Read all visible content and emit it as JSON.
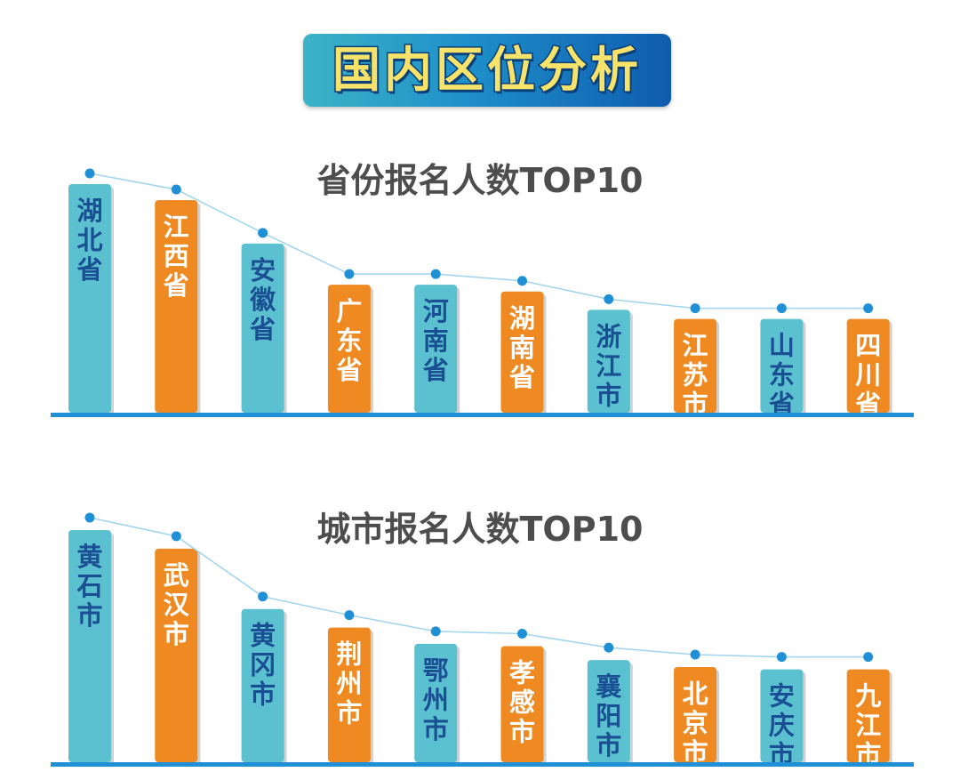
{
  "banner": {
    "title": "国内区位分析"
  },
  "colors": {
    "teal": "#5bc0cf",
    "orange": "#ee8a21",
    "teal_text": "#1a4f93",
    "orange_text": "#ffffff",
    "dot": "#1f8fd6",
    "line": "#9fd4ee",
    "baseline": "#1f8fd6"
  },
  "chart_data": [
    {
      "type": "bar",
      "title": "省份报名人数TOP10",
      "categories": [
        "湖北省",
        "江西省",
        "安徽省",
        "广东省",
        "河南省",
        "湖南省",
        "浙江市",
        "江苏市",
        "山东省",
        "四川省"
      ],
      "values": [
        100,
        93,
        74,
        56,
        56,
        53,
        45,
        41,
        41,
        41
      ],
      "bar_colors": [
        "teal",
        "orange",
        "teal",
        "orange",
        "teal",
        "orange",
        "teal",
        "orange",
        "teal",
        "orange"
      ],
      "ylim": [
        0,
        100
      ],
      "grid": false,
      "legend": "none"
    },
    {
      "type": "bar",
      "title": "城市报名人数TOP10",
      "categories": [
        "黄石市",
        "武汉市",
        "黄冈市",
        "荆州市",
        "鄂州市",
        "孝感市",
        "襄阳市",
        "北京市",
        "安庆市",
        "九江市"
      ],
      "values": [
        100,
        92,
        66,
        58,
        51,
        50,
        44,
        41,
        40,
        40
      ],
      "bar_colors": [
        "teal",
        "orange",
        "teal",
        "orange",
        "teal",
        "orange",
        "teal",
        "orange",
        "teal",
        "orange"
      ],
      "ylim": [
        0,
        100
      ],
      "grid": false,
      "legend": "none"
    }
  ]
}
